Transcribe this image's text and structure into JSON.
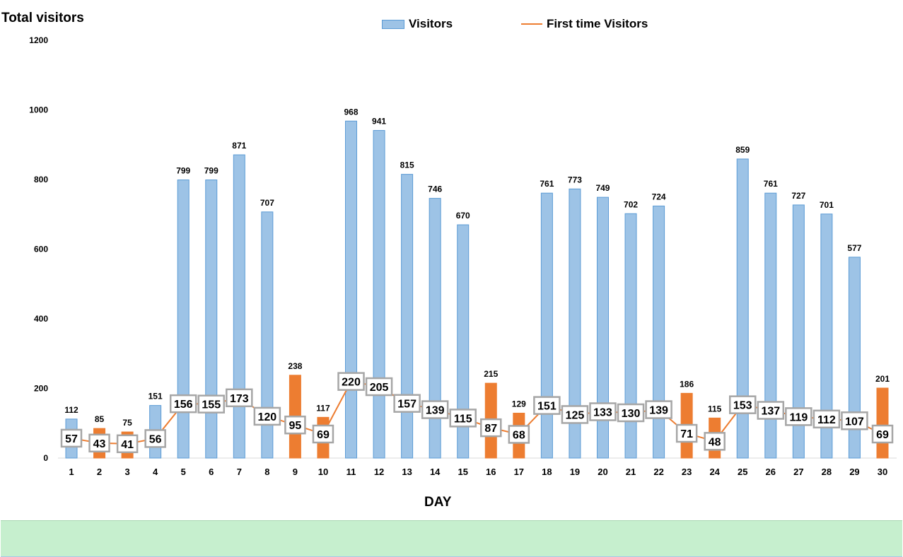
{
  "chart_data": {
    "type": "bar",
    "title": "Total visitors",
    "xlabel": "DAY",
    "ylabel": "",
    "ylim": [
      0,
      1200
    ],
    "yticks": [
      0,
      200,
      400,
      600,
      800,
      1000,
      1200
    ],
    "grid": false,
    "legend_position": "top-center",
    "categories": [
      "1",
      "2",
      "3",
      "4",
      "5",
      "6",
      "7",
      "8",
      "9",
      "10",
      "11",
      "12",
      "13",
      "14",
      "15",
      "16",
      "17",
      "18",
      "19",
      "20",
      "21",
      "22",
      "23",
      "24",
      "25",
      "26",
      "27",
      "28",
      "29",
      "30"
    ],
    "series": [
      {
        "name": "Visitors",
        "type": "bar",
        "values": [
          112,
          85,
          75,
          151,
          799,
          799,
          871,
          707,
          238,
          117,
          968,
          941,
          815,
          746,
          670,
          215,
          129,
          761,
          773,
          749,
          702,
          724,
          186,
          115,
          859,
          761,
          727,
          701,
          577,
          201
        ],
        "highlighted_days": [
          "2",
          "3",
          "9",
          "10",
          "16",
          "17",
          "23",
          "24",
          "30"
        ]
      },
      {
        "name": "First time Visitors",
        "type": "line",
        "values": [
          57,
          43,
          41,
          56,
          156,
          155,
          173,
          120,
          95,
          69,
          220,
          205,
          157,
          139,
          115,
          87,
          68,
          151,
          125,
          133,
          130,
          139,
          71,
          48,
          153,
          137,
          119,
          112,
          107,
          69
        ]
      }
    ],
    "colors": {
      "bar": "#9dc3e6",
      "bar_border": "#5b9bd5",
      "highlight": "#ed7d31",
      "line": "#ed7d31"
    }
  },
  "footer": {
    "color": "#c6efce"
  }
}
